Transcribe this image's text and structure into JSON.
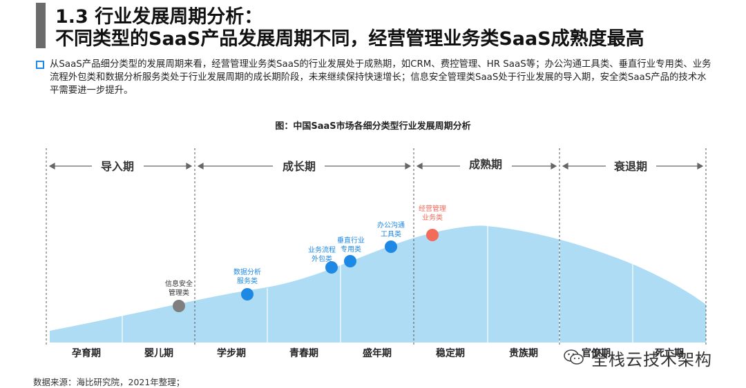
{
  "header": {
    "title_line1": "1.3 行业发展周期分析：",
    "title_line2": "不同类型的SaaS产品发展周期不同，经营管理业务类SaaS成熟度最高"
  },
  "body": {
    "paragraph": "从SaaS产品细分类型的发展周期来看，经营管理业务类SaaS的行业发展处于成熟期，如CRM、费控管理、HR SaaS等；办公沟通工具类、垂直行业专用类、业务流程外包类和数据分析服务类处于行业发展周期的成长期阶段，未来继续保持快速增长；信息安全管理类SaaS处于行业发展的导入期，安全类SaaS产品的技术水平需要进一步提升。"
  },
  "figure": {
    "title": "图：中国SaaS市场各细分类型行业发展周期分析",
    "phases": [
      "导入期",
      "成长期",
      "成熟期",
      "衰退期"
    ],
    "stages": [
      "孕育期",
      "婴儿期",
      "学步期",
      "青春期",
      "盛年期",
      "稳定期",
      "贵族期",
      "官僚期",
      "死亡期"
    ],
    "points": [
      {
        "label_lines": [
          "信息安全",
          "管理类"
        ],
        "color": "#7f7f7f"
      },
      {
        "label_lines": [
          "数据分析",
          "服务类"
        ],
        "color": "#1e88e5"
      },
      {
        "label_lines": [
          "业务流程",
          "外包类"
        ],
        "color": "#1e88e5"
      },
      {
        "label_lines": [
          "垂直行业",
          "专用类"
        ],
        "color": "#1e88e5"
      },
      {
        "label_lines": [
          "办公沟通",
          "工具类"
        ],
        "color": "#1e88e5"
      },
      {
        "label_lines": [
          "经营管理",
          "业务类"
        ],
        "color": "#f26b5b"
      }
    ],
    "curve_color": "#aedcf5",
    "blue_label_color": "#1e88e5",
    "red_label_color": "#f26b5b"
  },
  "footer": {
    "source": "数据来源：海比研究院，2021年整理；",
    "wechat_name": "全栈云技术架构"
  }
}
